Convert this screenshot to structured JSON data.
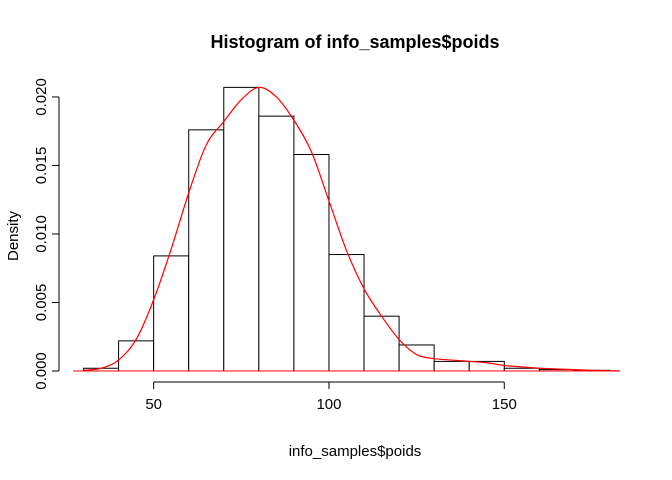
{
  "chart_data": {
    "type": "histogram",
    "title": "Histogram of info_samples$poids",
    "xlabel": "info_samples$poids",
    "ylabel": "Density",
    "xlim": [
      25,
      185
    ],
    "ylim": [
      0,
      0.0208
    ],
    "x_ticks": [
      50,
      100,
      150
    ],
    "x_tick_labels": [
      "50",
      "100",
      "150"
    ],
    "y_ticks": [
      0,
      0.005,
      0.01,
      0.015,
      0.02
    ],
    "y_tick_labels": [
      "0.000",
      "0.005",
      "0.010",
      "0.015",
      "0.020"
    ],
    "bins": [
      {
        "x0": 30,
        "x1": 40,
        "density": 0.0002
      },
      {
        "x0": 40,
        "x1": 50,
        "density": 0.0022
      },
      {
        "x0": 50,
        "x1": 60,
        "density": 0.0084
      },
      {
        "x0": 60,
        "x1": 70,
        "density": 0.0176
      },
      {
        "x0": 70,
        "x1": 80,
        "density": 0.0207
      },
      {
        "x0": 80,
        "x1": 90,
        "density": 0.0186
      },
      {
        "x0": 90,
        "x1": 100,
        "density": 0.0158
      },
      {
        "x0": 100,
        "x1": 110,
        "density": 0.0085
      },
      {
        "x0": 110,
        "x1": 120,
        "density": 0.004
      },
      {
        "x0": 120,
        "x1": 130,
        "density": 0.0019
      },
      {
        "x0": 130,
        "x1": 140,
        "density": 0.0007
      },
      {
        "x0": 140,
        "x1": 150,
        "density": 0.0007
      },
      {
        "x0": 150,
        "x1": 160,
        "density": 0.0002
      },
      {
        "x0": 160,
        "x1": 170,
        "density": 0.0001
      },
      {
        "x0": 170,
        "x1": 180,
        "density": 5e-05
      }
    ],
    "density_curve": {
      "color": "#ff0000",
      "x": [
        30,
        35,
        40,
        45,
        50,
        55,
        60,
        65,
        70,
        75,
        80,
        85,
        90,
        95,
        100,
        105,
        110,
        115,
        120,
        125,
        130,
        135,
        140,
        145,
        150,
        155,
        160,
        165,
        170,
        175,
        180,
        183
      ],
      "y": [
        5e-05,
        0.0002,
        0.0008,
        0.0023,
        0.0052,
        0.0089,
        0.013,
        0.0165,
        0.0182,
        0.0198,
        0.0207,
        0.02,
        0.0183,
        0.016,
        0.0124,
        0.0088,
        0.006,
        0.004,
        0.0023,
        0.0012,
        0.0009,
        0.0008,
        0.0007,
        0.0006,
        0.0004,
        0.0003,
        0.0002,
        0.00015,
        0.0001,
        5e-05,
        2e-05,
        1e-05
      ]
    },
    "bar_fill": "#ffffff",
    "bar_stroke": "#000000",
    "grid": false
  }
}
